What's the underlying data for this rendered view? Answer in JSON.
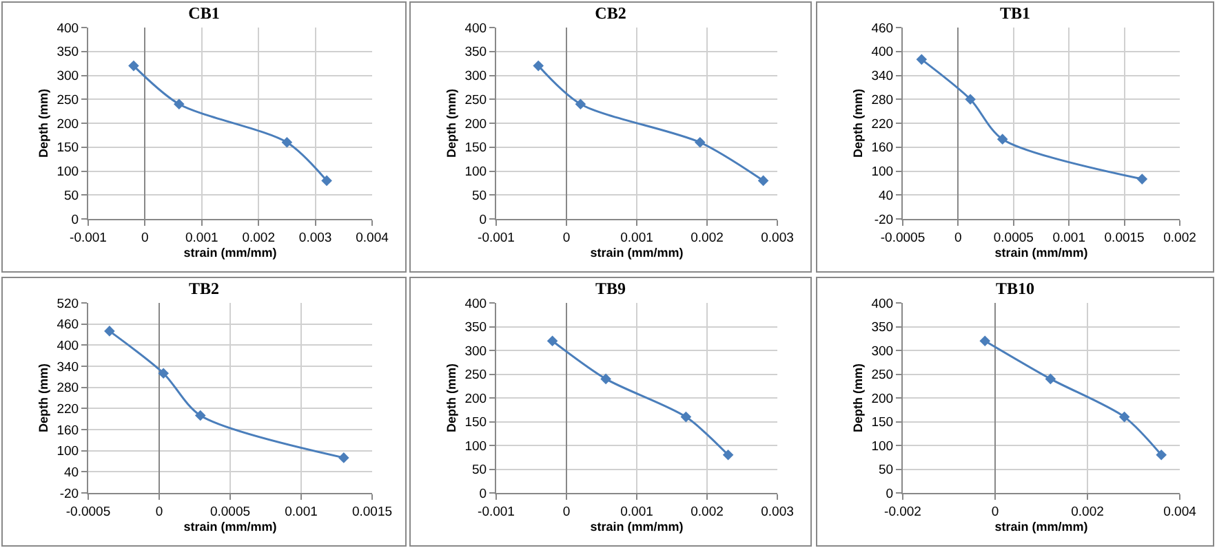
{
  "chart_data": [
    {
      "type": "line",
      "title": "CB1",
      "xlabel": "strain (mm/mm)",
      "ylabel": "Depth (mm)",
      "x": [
        -0.0002,
        0.0006,
        0.0025,
        0.0032
      ],
      "values": [
        320,
        240,
        160,
        80
      ],
      "color": "#4a7ebb",
      "xlim": [
        -0.001,
        0.004
      ],
      "xticks": [
        -0.001,
        0,
        0.001,
        0.002,
        0.003,
        0.004
      ],
      "ylim": [
        0,
        400
      ],
      "yticks": [
        0,
        50,
        100,
        150,
        200,
        250,
        300,
        350,
        400
      ],
      "grid": true,
      "marker": "diamond"
    },
    {
      "type": "line",
      "title": "CB2",
      "xlabel": "strain (mm/mm)",
      "ylabel": "Depth (mm)",
      "x": [
        -0.0004,
        0.0002,
        0.0019,
        0.0028
      ],
      "values": [
        320,
        240,
        160,
        80
      ],
      "color": "#4a7ebb",
      "xlim": [
        -0.001,
        0.003
      ],
      "xticks": [
        -0.001,
        0,
        0.001,
        0.002,
        0.003
      ],
      "ylim": [
        0,
        400
      ],
      "yticks": [
        0,
        50,
        100,
        150,
        200,
        250,
        300,
        350,
        400
      ],
      "grid": true,
      "marker": "diamond"
    },
    {
      "type": "line",
      "title": "TB1",
      "xlabel": "strain (mm/mm)",
      "ylabel": "Depth (mm)",
      "x": [
        -0.00033,
        0.00011,
        0.0004,
        0.00166
      ],
      "values": [
        380,
        280,
        180,
        80
      ],
      "color": "#4a7ebb",
      "xlim": [
        -0.0005,
        0.002
      ],
      "xticks": [
        -0.0005,
        0,
        0.0005,
        0.001,
        0.0015,
        0.002
      ],
      "ylim": [
        -20,
        460
      ],
      "yticks": [
        -20,
        40,
        100,
        160,
        220,
        280,
        340,
        400,
        460
      ],
      "grid": true,
      "marker": "diamond"
    },
    {
      "type": "line",
      "title": "TB2",
      "xlabel": "strain (mm/mm)",
      "ylabel": "Depth (mm)",
      "x": [
        -0.00035,
        3e-05,
        0.00029,
        0.0013
      ],
      "values": [
        440,
        320,
        200,
        80
      ],
      "color": "#4a7ebb",
      "xlim": [
        -0.0005,
        0.0015
      ],
      "xticks": [
        -0.0005,
        0,
        0.0005,
        0.001,
        0.0015
      ],
      "ylim": [
        -20,
        520
      ],
      "yticks": [
        -20,
        40,
        100,
        160,
        220,
        280,
        340,
        400,
        460,
        520
      ],
      "grid": true,
      "marker": "diamond"
    },
    {
      "type": "line",
      "title": "TB9",
      "xlabel": "strain (mm/mm)",
      "ylabel": "Depth (mm)",
      "x": [
        -0.0002,
        0.00056,
        0.0017,
        0.0023
      ],
      "values": [
        320,
        240,
        160,
        80
      ],
      "color": "#4a7ebb",
      "xlim": [
        -0.001,
        0.003
      ],
      "xticks": [
        -0.001,
        0,
        0.001,
        0.002,
        0.003
      ],
      "ylim": [
        0,
        400
      ],
      "yticks": [
        0,
        50,
        100,
        150,
        200,
        250,
        300,
        350,
        400
      ],
      "grid": true,
      "marker": "diamond"
    },
    {
      "type": "line",
      "title": "TB10",
      "xlabel": "strain (mm/mm)",
      "ylabel": "Depth (mm)",
      "x": [
        -0.00022,
        0.0012,
        0.0028,
        0.0036
      ],
      "values": [
        320,
        240,
        160,
        80
      ],
      "color": "#4a7ebb",
      "xlim": [
        -0.002,
        0.004
      ],
      "xticks": [
        -0.002,
        0,
        0.002,
        0.004
      ],
      "ylim": [
        0,
        400
      ],
      "yticks": [
        0,
        50,
        100,
        150,
        200,
        250,
        300,
        350,
        400
      ],
      "grid": true,
      "marker": "diamond"
    }
  ]
}
